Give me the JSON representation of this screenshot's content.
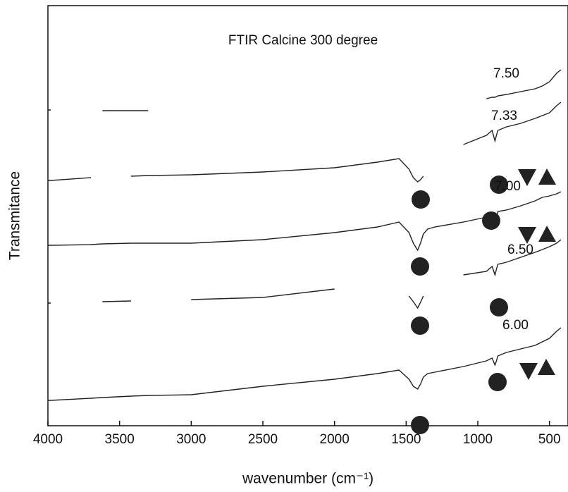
{
  "chart_data": {
    "type": "line",
    "title": "FTIR Calcine 300 degree",
    "x_label": "wavenumber (cm⁻¹)",
    "y_label": "Transmitance",
    "xlim": [
      4000,
      400
    ],
    "ylim": [
      0,
      596
    ],
    "xticks": [
      4000,
      3500,
      3000,
      2500,
      2000,
      1500,
      1000,
      500
    ],
    "x": [
      4000,
      3980,
      3700,
      3620,
      3420,
      3300,
      3000,
      2500,
      2000,
      1700,
      1550,
      1480,
      1450,
      1420,
      1400,
      1380,
      1350,
      1300,
      1100,
      940,
      900,
      880,
      870,
      860,
      800,
      700,
      600,
      550,
      500,
      450,
      420
    ],
    "series": [
      {
        "name": "7.50",
        "color": "#222222",
        "values": [
          448,
          448,
          null,
          447,
          447,
          447,
          null,
          null,
          null,
          null,
          null,
          null,
          null,
          null,
          null,
          null,
          null,
          null,
          null,
          464,
          466,
          466,
          467,
          468,
          470,
          474,
          478,
          482,
          488,
          500,
          505
        ]
      },
      {
        "name": "7.33",
        "color": "#222222",
        "values": [
          348,
          348,
          352,
          null,
          354,
          355,
          356,
          360,
          366,
          374,
          379,
          364,
          352,
          346,
          349,
          354,
          null,
          null,
          399,
          412,
          419,
          404,
          412,
          419,
          424,
          429,
          436,
          440,
          444,
          454,
          459
        ]
      },
      {
        "name": "7.00",
        "color": "#222222",
        "values": [
          256,
          256,
          257,
          258,
          259,
          259,
          259,
          264,
          274,
          282,
          289,
          274,
          259,
          249,
          259,
          272,
          279,
          282,
          289,
          296,
          299,
          284,
          294,
          304,
          306,
          312,
          319,
          324,
          326,
          329,
          332
        ]
      },
      {
        "name": "6.50",
        "color": "#222222",
        "values": [
          174,
          174,
          null,
          176,
          177,
          null,
          179,
          182,
          194,
          null,
          null,
          184,
          176,
          167,
          175,
          184,
          null,
          null,
          214,
          219,
          226,
          214,
          222,
          229,
          232,
          239,
          246,
          250,
          254,
          259,
          264
        ]
      },
      {
        "name": "6.00",
        "color": "#222222",
        "values": [
          36,
          36,
          39,
          40,
          42,
          43,
          44,
          56,
          66,
          74,
          79,
          66,
          56,
          52,
          59,
          69,
          74,
          76,
          84,
          92,
          96,
          86,
          92,
          99,
          104,
          109,
          114,
          119,
          124,
          134,
          139
        ]
      }
    ]
  }
}
